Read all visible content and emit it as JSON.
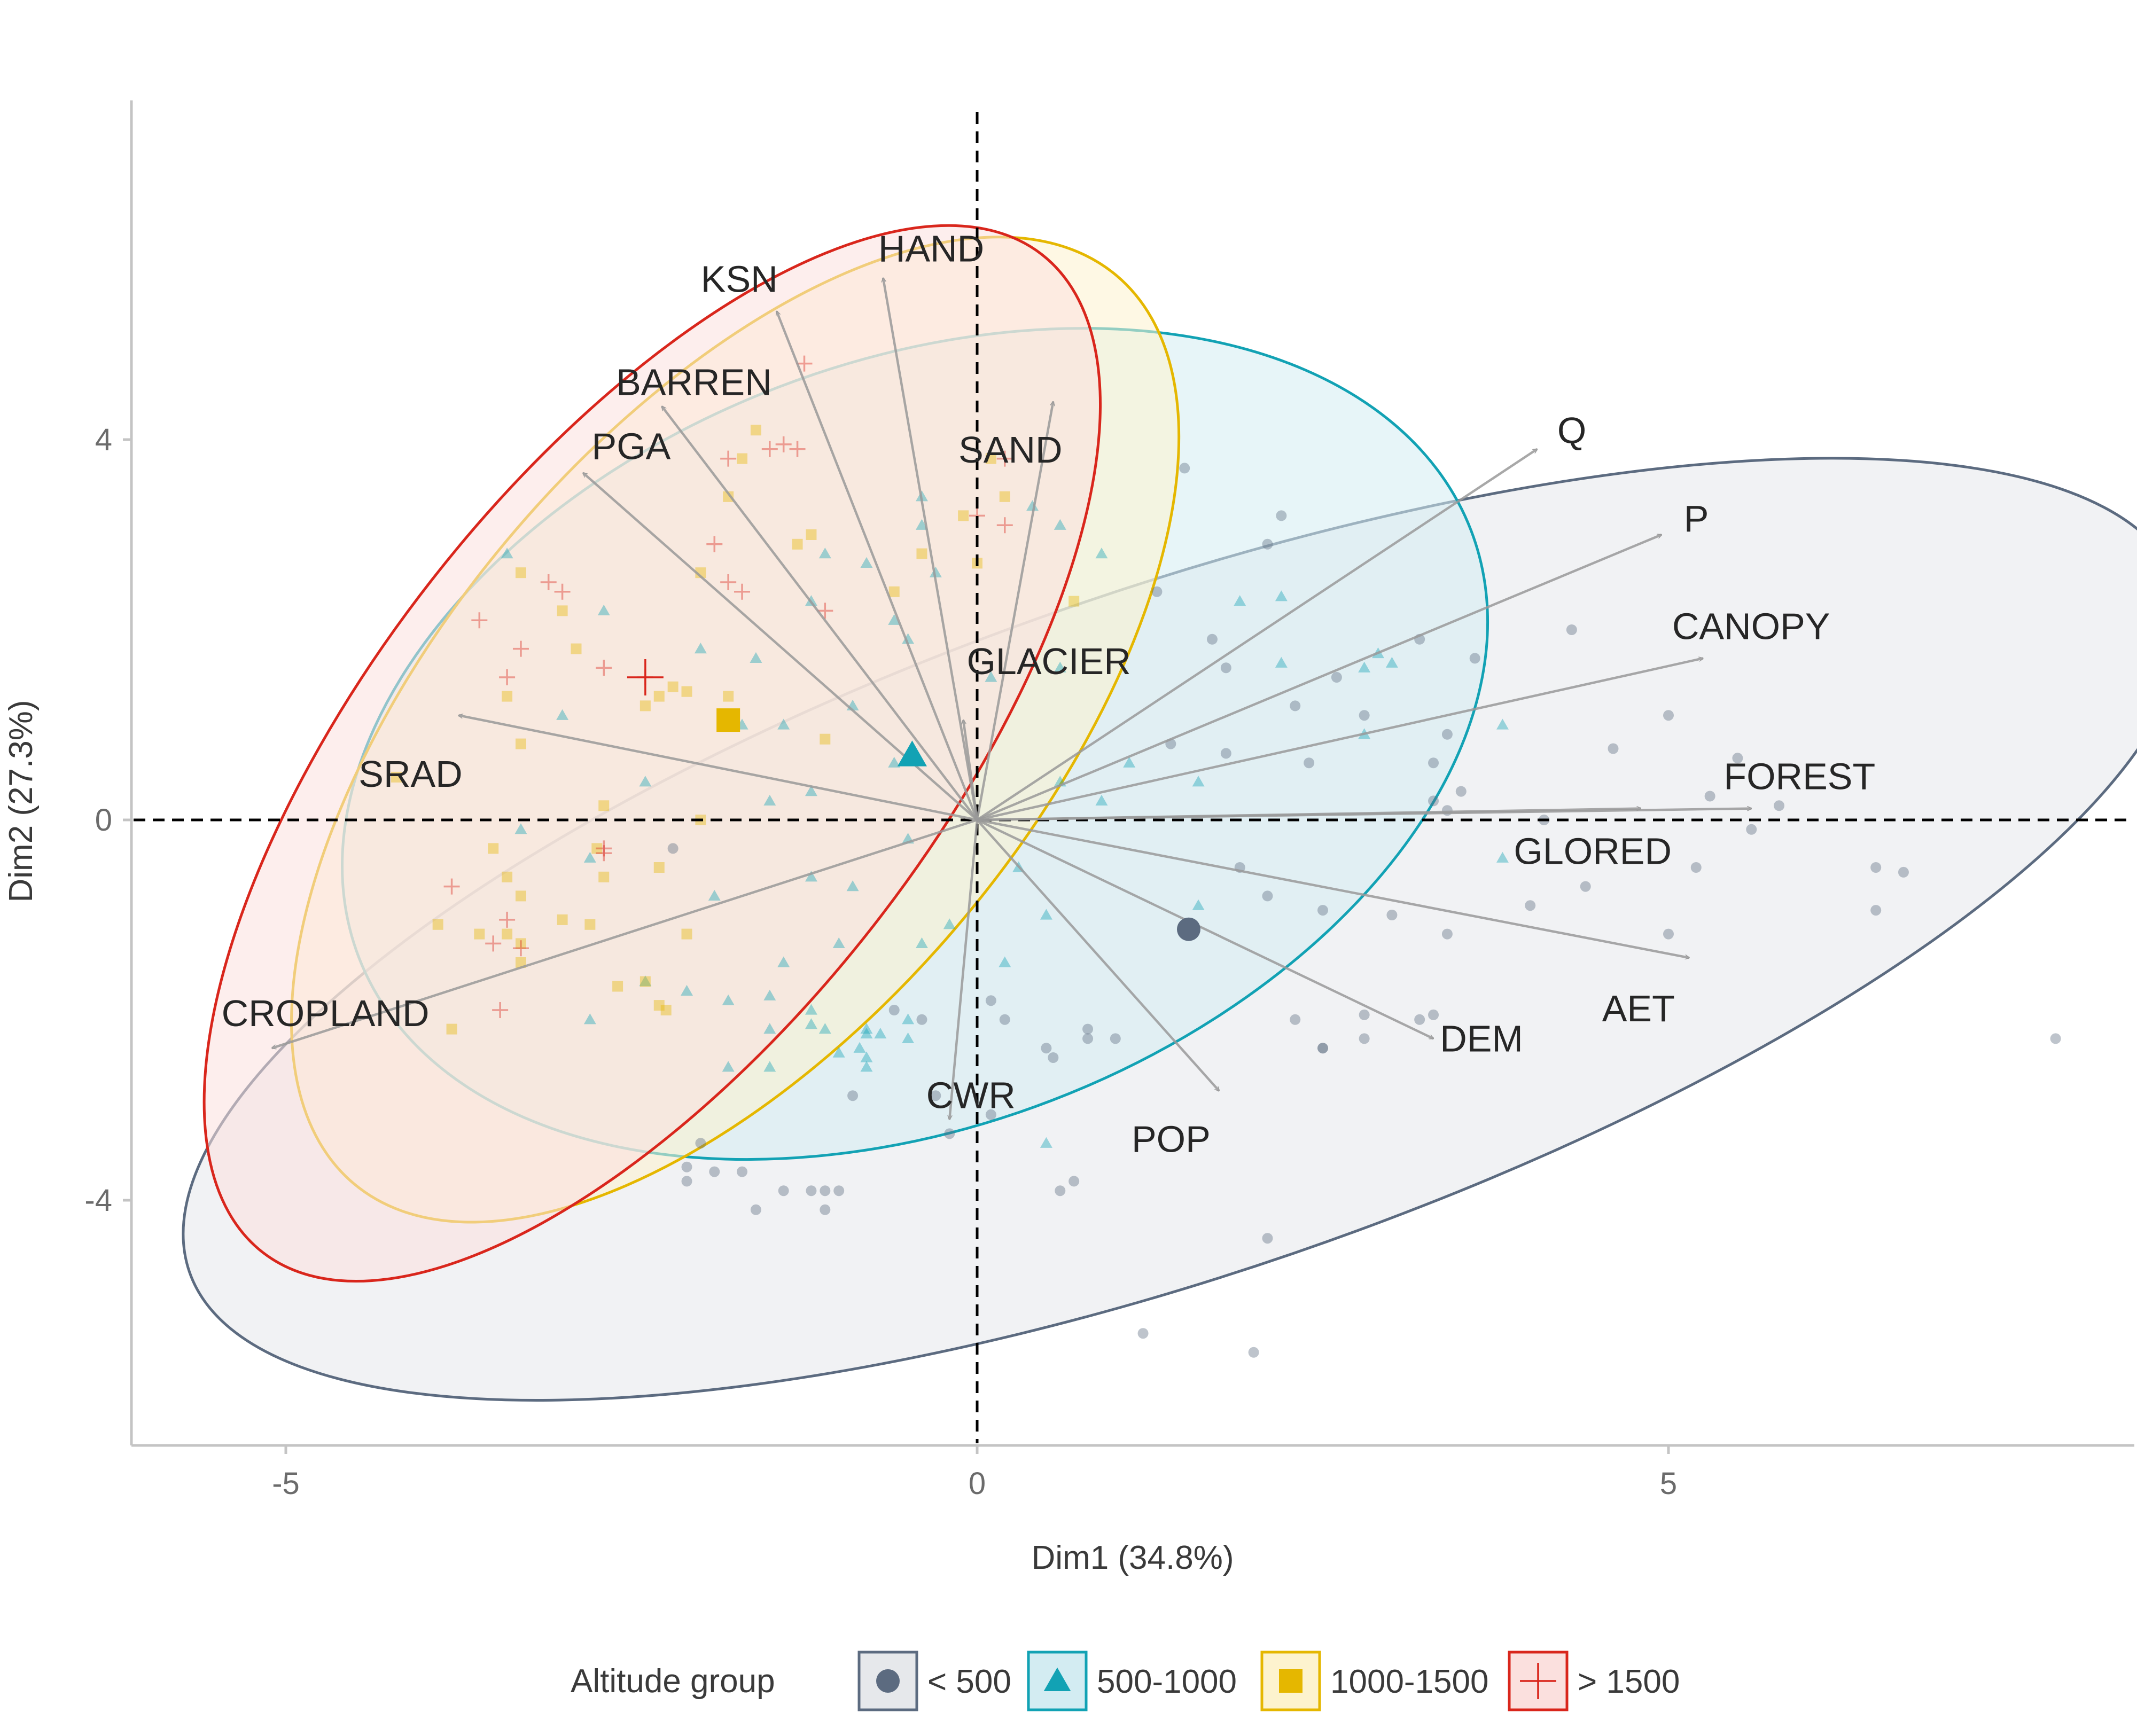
{
  "chart_data": {
    "type": "scatter",
    "subtype": "pca-biplot",
    "title": "",
    "xlabel": "Dim1 (34.8%)",
    "ylabel": "Dim2 (27.3%)",
    "xlim": [
      -6.1,
      8.4
    ],
    "ylim": [
      -6.6,
      7.4
    ],
    "x_ticks": [
      {
        "value": -5,
        "label": "-5"
      },
      {
        "value": 0,
        "label": "0"
      },
      {
        "value": 5,
        "label": "5"
      }
    ],
    "y_ticks": [
      {
        "value": -4,
        "label": "-4"
      },
      {
        "value": 0,
        "label": "0"
      },
      {
        "value": 4,
        "label": "4"
      }
    ],
    "grid": false,
    "reference_lines": {
      "x": 0,
      "y": 0,
      "style": "dashed"
    },
    "legend": {
      "title": "Altitude group",
      "position": "bottom",
      "entries": [
        {
          "label": "< 500",
          "shape": "circle",
          "color": "#5c6b80"
        },
        {
          "label": "500-1000",
          "shape": "triangle",
          "color": "#12a2b4"
        },
        {
          "label": "1000-1500",
          "shape": "square",
          "color": "#e5b700"
        },
        {
          "label": "> 1500",
          "shape": "cross",
          "color": "#d9261c"
        }
      ]
    },
    "series": [
      {
        "name": "< 500",
        "shape": "circle",
        "color": "#5c6b80",
        "ellipse": {
          "center": [
            1.5,
            -1.15
          ],
          "border": "#5c6b80",
          "fill": "#e6e8eb"
        },
        "centroid": [
          1.53,
          -1.15
        ],
        "points": [
          [
            1.5,
            3.7
          ],
          [
            2.1,
            2.9
          ],
          [
            2.2,
            3.2
          ],
          [
            1.3,
            2.4
          ],
          [
            1.7,
            1.9
          ],
          [
            1.8,
            1.6
          ],
          [
            2.6,
            1.5
          ],
          [
            3.2,
            1.9
          ],
          [
            3.6,
            1.7
          ],
          [
            4.3,
            2.0
          ],
          [
            2.3,
            1.2
          ],
          [
            2.8,
            1.1
          ],
          [
            3.4,
            0.9
          ],
          [
            1.4,
            0.8
          ],
          [
            1.8,
            0.7
          ],
          [
            2.4,
            0.6
          ],
          [
            3.3,
            0.6
          ],
          [
            3.5,
            0.3
          ],
          [
            3.3,
            0.2
          ],
          [
            3.4,
            0.1
          ],
          [
            4.6,
            0.75
          ],
          [
            5.0,
            1.1
          ],
          [
            5.3,
            0.25
          ],
          [
            5.5,
            0.65
          ],
          [
            5.8,
            0.15
          ],
          [
            5.6,
            -0.1
          ],
          [
            4.1,
            0.0
          ],
          [
            1.9,
            -0.5
          ],
          [
            2.1,
            -0.8
          ],
          [
            2.5,
            -0.95
          ],
          [
            3.0,
            -1.0
          ],
          [
            3.4,
            -1.2
          ],
          [
            4.0,
            -0.9
          ],
          [
            4.4,
            -0.7
          ],
          [
            5.0,
            -1.2
          ],
          [
            5.2,
            -0.5
          ],
          [
            6.5,
            -0.5
          ],
          [
            6.7,
            -0.55
          ],
          [
            6.5,
            -0.95
          ],
          [
            7.8,
            -2.3
          ],
          [
            2.3,
            -2.1
          ],
          [
            2.5,
            -2.4
          ],
          [
            2.5,
            -2.4
          ],
          [
            2.8,
            -2.05
          ],
          [
            3.2,
            -2.1
          ],
          [
            3.3,
            -2.05
          ],
          [
            2.8,
            -2.3
          ],
          [
            1.0,
            -2.3
          ],
          [
            0.8,
            -2.2
          ],
          [
            0.8,
            -2.3
          ],
          [
            0.5,
            -2.4
          ],
          [
            0.55,
            -2.5
          ],
          [
            0.2,
            -2.1
          ],
          [
            0.1,
            -1.9
          ],
          [
            -0.4,
            -2.1
          ],
          [
            -0.6,
            -2.0
          ],
          [
            -0.9,
            -2.9
          ],
          [
            -1.0,
            -3.9
          ],
          [
            -1.1,
            -3.9
          ],
          [
            -1.1,
            -4.1
          ],
          [
            -1.2,
            -3.9
          ],
          [
            -1.4,
            -3.9
          ],
          [
            -1.6,
            -4.1
          ],
          [
            -1.7,
            -3.7
          ],
          [
            -1.9,
            -3.7
          ],
          [
            -2.1,
            -3.8
          ],
          [
            -2.1,
            -3.65
          ],
          [
            -2.0,
            -3.4
          ],
          [
            0.6,
            -3.9
          ],
          [
            0.7,
            -3.8
          ],
          [
            -0.2,
            -3.3
          ],
          [
            0.1,
            -3.1
          ],
          [
            -0.3,
            -2.9
          ],
          [
            1.2,
            -5.4
          ],
          [
            2.0,
            -5.6
          ],
          [
            2.1,
            -4.4
          ],
          [
            -2.2,
            -0.3
          ]
        ]
      },
      {
        "name": "500-1000",
        "shape": "triangle",
        "color": "#12a2b4",
        "ellipse": {
          "center": [
            -0.45,
            0.8
          ],
          "border": "#12a2b4",
          "fill": "#d3ecf2"
        },
        "centroid": [
          -0.47,
          0.68
        ],
        "points": [
          [
            -0.4,
            3.4
          ],
          [
            -0.4,
            3.1
          ],
          [
            0.4,
            3.3
          ],
          [
            0.6,
            3.1
          ],
          [
            0.9,
            2.8
          ],
          [
            1.9,
            2.3
          ],
          [
            2.2,
            2.35
          ],
          [
            2.2,
            1.65
          ],
          [
            2.8,
            1.6
          ],
          [
            2.9,
            1.75
          ],
          [
            3.0,
            1.65
          ],
          [
            2.8,
            0.9
          ],
          [
            3.8,
            1.0
          ],
          [
            0.6,
            1.6
          ],
          [
            0.1,
            1.5
          ],
          [
            -0.3,
            2.6
          ],
          [
            -0.8,
            2.7
          ],
          [
            -1.1,
            2.8
          ],
          [
            -1.2,
            2.3
          ],
          [
            -0.6,
            2.1
          ],
          [
            -1.6,
            1.7
          ],
          [
            -2.0,
            1.8
          ],
          [
            -2.7,
            2.2
          ],
          [
            -3.4,
            2.8
          ],
          [
            -0.5,
            1.9
          ],
          [
            -0.9,
            1.2
          ],
          [
            -1.4,
            1.0
          ],
          [
            -1.7,
            1.0
          ],
          [
            -3.0,
            1.1
          ],
          [
            -0.6,
            0.6
          ],
          [
            -1.2,
            0.3
          ],
          [
            -1.5,
            0.2
          ],
          [
            -2.4,
            0.4
          ],
          [
            -3.3,
            -0.1
          ],
          [
            -2.8,
            -0.4
          ],
          [
            -1.9,
            -0.8
          ],
          [
            -1.2,
            -0.6
          ],
          [
            -0.9,
            -0.7
          ],
          [
            -0.5,
            -0.2
          ],
          [
            0.3,
            -0.5
          ],
          [
            0.6,
            0.4
          ],
          [
            0.9,
            0.2
          ],
          [
            1.1,
            0.6
          ],
          [
            1.6,
            0.4
          ],
          [
            1.6,
            -0.9
          ],
          [
            0.5,
            -1.0
          ],
          [
            0.2,
            -1.5
          ],
          [
            -0.2,
            -1.1
          ],
          [
            -0.4,
            -1.3
          ],
          [
            -1.0,
            -1.3
          ],
          [
            -1.4,
            -1.5
          ],
          [
            -1.5,
            -1.85
          ],
          [
            -1.8,
            -1.9
          ],
          [
            -2.1,
            -1.8
          ],
          [
            -2.4,
            -1.7
          ],
          [
            -2.8,
            -2.1
          ],
          [
            -1.2,
            -2.0
          ],
          [
            -1.5,
            -2.2
          ],
          [
            -1.2,
            -2.15
          ],
          [
            -1.1,
            -2.2
          ],
          [
            -0.8,
            -2.2
          ],
          [
            -0.7,
            -2.25
          ],
          [
            -0.8,
            -2.5
          ],
          [
            -1.0,
            -2.45
          ],
          [
            -1.5,
            -2.6
          ],
          [
            -1.8,
            -2.6
          ],
          [
            -0.8,
            -2.25
          ],
          [
            -0.5,
            -2.1
          ],
          [
            -0.85,
            -2.4
          ],
          [
            -0.5,
            -2.3
          ],
          [
            -0.8,
            -2.6
          ],
          [
            0.5,
            -3.4
          ],
          [
            3.8,
            -0.4
          ]
        ]
      },
      {
        "name": "1000-1500",
        "shape": "square",
        "color": "#e5b700",
        "ellipse": {
          "center": [
            -1.75,
            0.95
          ],
          "border": "#e5b700",
          "fill": "#fdf3ce"
        },
        "centroid": [
          -1.8,
          1.05
        ],
        "points": [
          [
            0.1,
            3.8
          ],
          [
            -0.1,
            3.2
          ],
          [
            -0.4,
            2.8
          ],
          [
            -0.6,
            2.4
          ],
          [
            0.0,
            2.7
          ],
          [
            0.2,
            3.4
          ],
          [
            0.7,
            2.3
          ],
          [
            -1.2,
            3.0
          ],
          [
            -1.3,
            2.9
          ],
          [
            -1.6,
            4.1
          ],
          [
            -1.7,
            3.8
          ],
          [
            -1.8,
            3.4
          ],
          [
            -2.0,
            2.6
          ],
          [
            -1.8,
            1.3
          ],
          [
            -2.1,
            1.35
          ],
          [
            -2.3,
            1.3
          ],
          [
            -2.2,
            1.4
          ],
          [
            -2.4,
            1.2
          ],
          [
            -2.9,
            1.8
          ],
          [
            -3.0,
            2.2
          ],
          [
            -3.3,
            2.6
          ],
          [
            -3.4,
            1.3
          ],
          [
            -3.3,
            0.8
          ],
          [
            -4.2,
            0.45
          ],
          [
            -2.7,
            0.15
          ],
          [
            -2.0,
            0.0
          ],
          [
            -1.1,
            0.85
          ],
          [
            -2.3,
            -0.5
          ],
          [
            -2.7,
            -0.6
          ],
          [
            -2.75,
            -0.3
          ],
          [
            -2.8,
            -1.1
          ],
          [
            -3.0,
            -1.05
          ],
          [
            -3.3,
            -0.8
          ],
          [
            -3.4,
            -1.2
          ],
          [
            -3.3,
            -1.3
          ],
          [
            -3.4,
            -0.6
          ],
          [
            -3.6,
            -1.2
          ],
          [
            -3.9,
            -1.1
          ],
          [
            -3.3,
            -1.5
          ],
          [
            -2.4,
            -1.7
          ],
          [
            -2.3,
            -1.95
          ],
          [
            -2.25,
            -2.0
          ],
          [
            -2.6,
            -1.75
          ],
          [
            -3.8,
            -2.2
          ],
          [
            -3.5,
            -0.3
          ],
          [
            -2.1,
            -1.2
          ]
        ]
      },
      {
        "name": "> 1500",
        "shape": "cross",
        "color": "#d9261c",
        "ellipse": {
          "center": [
            -2.35,
            0.7
          ],
          "border": "#d9261c",
          "fill": "#fbe0de"
        },
        "centroid": [
          -2.4,
          1.5
        ],
        "points": [
          [
            -1.25,
            4.8
          ],
          [
            -1.3,
            3.9
          ],
          [
            -1.5,
            3.9
          ],
          [
            -1.4,
            3.95
          ],
          [
            -1.8,
            3.8
          ],
          [
            0.2,
            3.8
          ],
          [
            0.0,
            3.2
          ],
          [
            0.2,
            3.1
          ],
          [
            -1.7,
            2.4
          ],
          [
            -1.8,
            2.5
          ],
          [
            -1.9,
            2.9
          ],
          [
            -1.1,
            2.2
          ],
          [
            -3.0,
            2.4
          ],
          [
            -3.1,
            2.5
          ],
          [
            -3.3,
            1.8
          ],
          [
            -3.6,
            2.1
          ],
          [
            -3.4,
            1.5
          ],
          [
            -2.7,
            1.6
          ],
          [
            -2.4,
            1.5
          ],
          [
            -3.8,
            -0.7
          ],
          [
            -3.4,
            -1.05
          ],
          [
            -3.5,
            -1.3
          ],
          [
            -3.3,
            -1.35
          ],
          [
            -2.7,
            -0.3
          ],
          [
            -2.7,
            -0.35
          ],
          [
            -3.45,
            -2.0
          ]
        ]
      }
    ],
    "variables": [
      {
        "name": "HAND",
        "arrow": [
          -0.68,
          5.7
        ]
      },
      {
        "name": "KSN",
        "arrow": [
          -1.45,
          5.35
        ]
      },
      {
        "name": "BARREN",
        "arrow": [
          -2.28,
          4.35
        ]
      },
      {
        "name": "PGA",
        "arrow": [
          -2.85,
          3.65
        ]
      },
      {
        "name": "SAND",
        "arrow": [
          0.55,
          4.4
        ]
      },
      {
        "name": "Q",
        "arrow": [
          4.05,
          3.9
        ]
      },
      {
        "name": "P",
        "arrow": [
          4.95,
          3.0
        ]
      },
      {
        "name": "CANOPY",
        "arrow": [
          5.25,
          1.7
        ]
      },
      {
        "name": "FOREST",
        "arrow": [
          5.6,
          0.12
        ]
      },
      {
        "name": "GLORED",
        "arrow": [
          4.8,
          0.12
        ]
      },
      {
        "name": "AET",
        "arrow": [
          5.15,
          -1.45
        ]
      },
      {
        "name": "DEM",
        "arrow": [
          3.3,
          -2.3
        ]
      },
      {
        "name": "POP",
        "arrow": [
          1.75,
          -2.85
        ]
      },
      {
        "name": "CWR",
        "arrow": [
          -0.2,
          -3.15
        ]
      },
      {
        "name": "GLACIER",
        "arrow": [
          -0.1,
          1.05
        ]
      },
      {
        "name": "SRAD",
        "arrow": [
          -3.75,
          1.1
        ]
      },
      {
        "name": "CROPLAND",
        "arrow": [
          -5.1,
          -2.4
        ]
      }
    ]
  }
}
